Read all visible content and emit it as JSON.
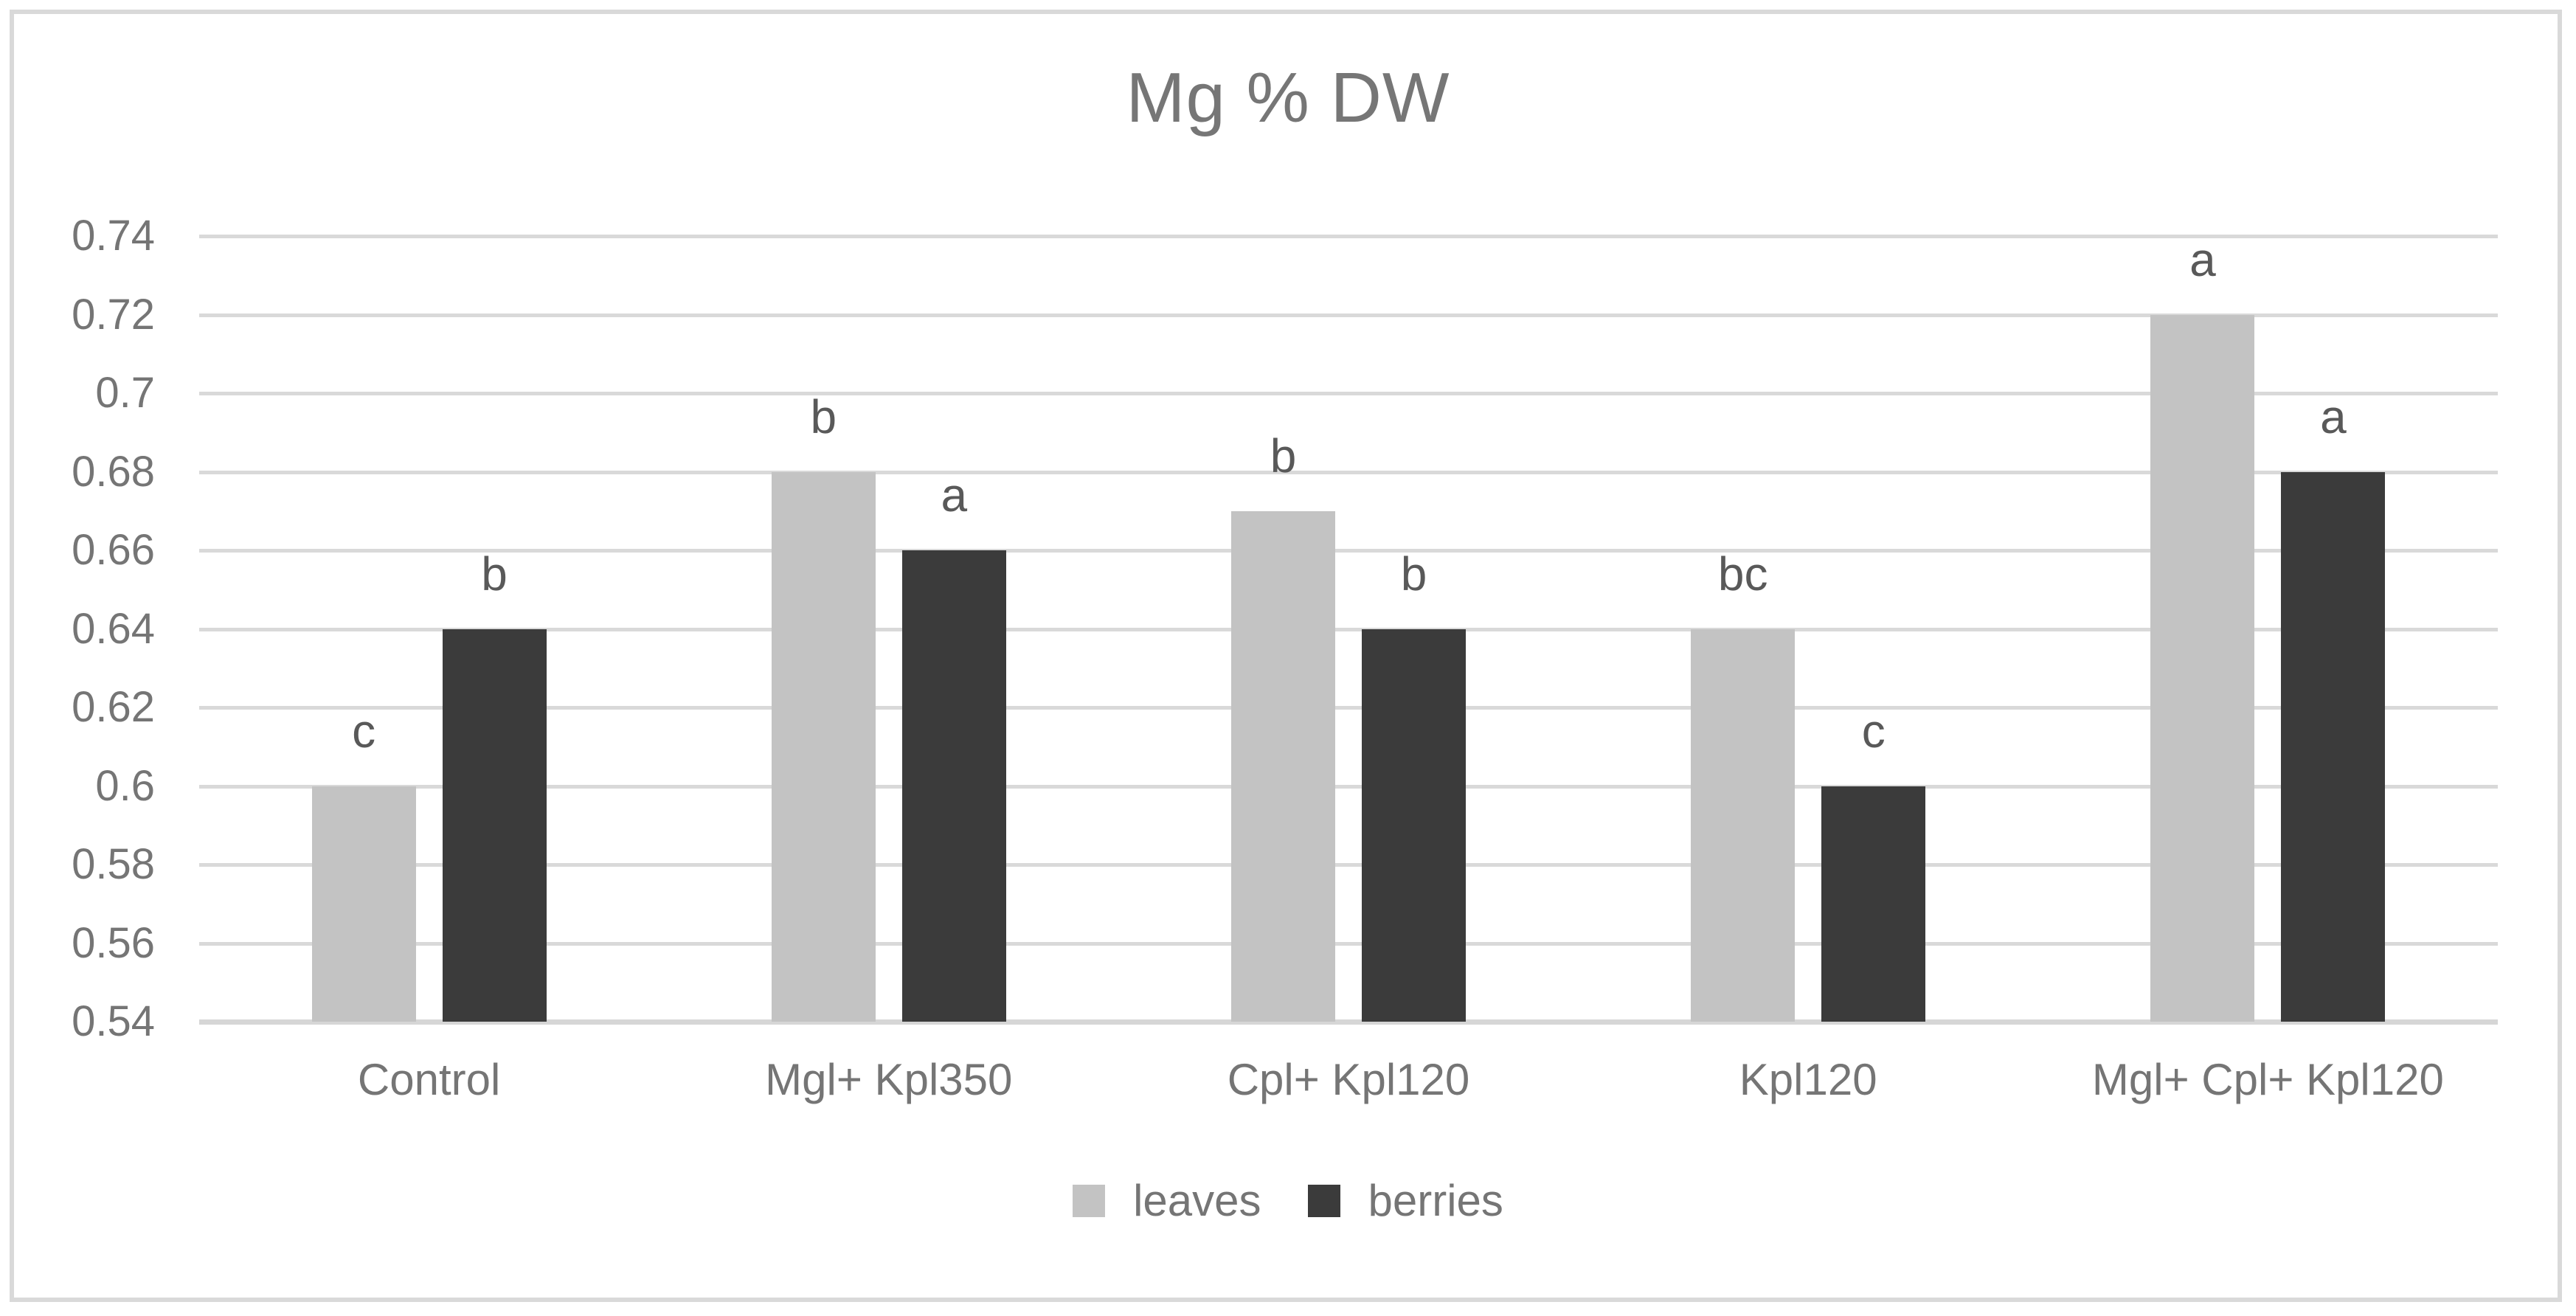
{
  "chart_data": {
    "type": "bar",
    "title": "Mg % DW",
    "categories": [
      "Control",
      "Mgl+ Kpl350",
      "Cpl+ Kpl120",
      "Kpl120",
      "Mgl+ Cpl+ Kpl120"
    ],
    "series": [
      {
        "name": "leaves",
        "color": "#c3c3c3",
        "values": [
          0.6,
          0.68,
          0.67,
          0.64,
          0.72
        ],
        "annotations": [
          "c",
          "b",
          "b",
          "bc",
          "a"
        ]
      },
      {
        "name": "berries",
        "color": "#3b3b3b",
        "values": [
          0.64,
          0.66,
          0.64,
          0.6,
          0.68
        ],
        "annotations": [
          "b",
          "a",
          "b",
          "c",
          "a"
        ]
      }
    ],
    "ylim": [
      0.54,
      0.74
    ],
    "ytick_step": 0.02,
    "yticks": [
      "0.74",
      "0.72",
      "0.7",
      "0.68",
      "0.66",
      "0.64",
      "0.62",
      "0.6",
      "0.58",
      "0.56",
      "0.54"
    ],
    "xlabel": "",
    "ylabel": "",
    "grid": true,
    "legend_position": "bottom",
    "colors": {
      "gridline": "#d9d9d9",
      "frame_border": "#d9d9d9",
      "title_text": "#767676",
      "axis_text": "#757575",
      "annotation_text": "#595959"
    }
  }
}
